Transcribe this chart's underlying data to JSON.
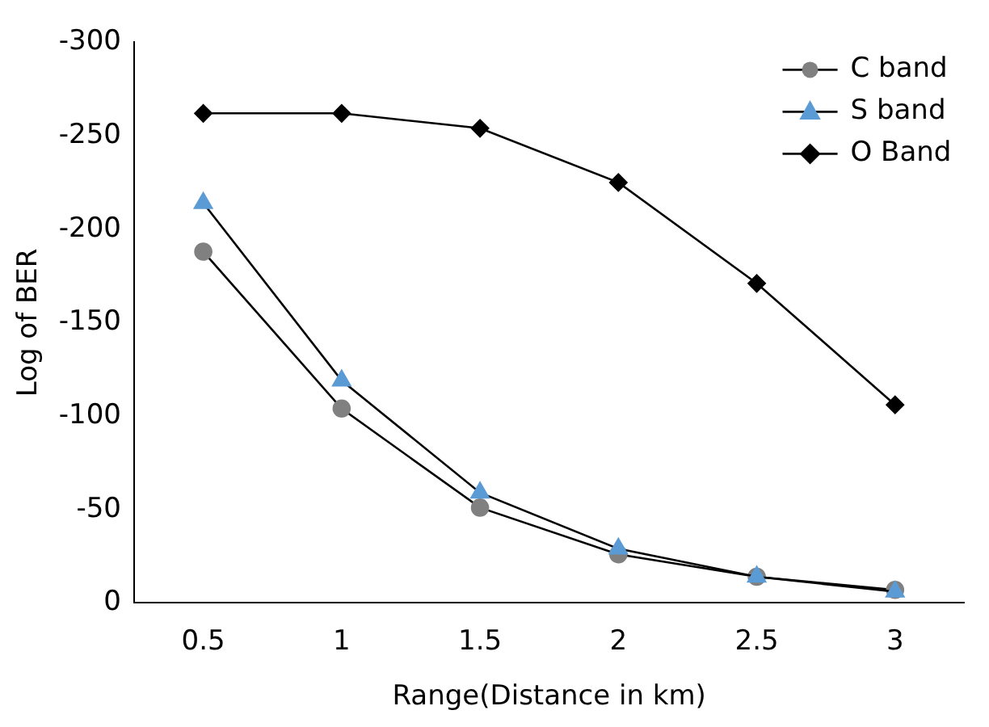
{
  "chart_data": {
    "type": "line",
    "xlabel": "Range(Distance in km)",
    "ylabel": "Log of BER",
    "categories": [
      "0.5",
      "1",
      "1.5",
      "2",
      "2.5",
      "3"
    ],
    "series": [
      {
        "name": "C band",
        "color": "#808080",
        "marker": "circle",
        "values": [
          -188,
          -104,
          -51,
          -26,
          -14,
          -7
        ]
      },
      {
        "name": "S band",
        "color": "#5b9bd5",
        "marker": "triangle",
        "values": [
          -214,
          -119,
          -59,
          -29,
          -14,
          -6
        ]
      },
      {
        "name": "O Band",
        "color": "#000000",
        "marker": "diamond",
        "values": [
          -262,
          -262,
          -254,
          -225,
          -171,
          -106
        ]
      }
    ],
    "ylim": [
      0,
      -300
    ],
    "yticks": [
      0,
      -50,
      -100,
      -150,
      -200,
      -250,
      -300
    ],
    "grid": false,
    "legend": "top right"
  }
}
